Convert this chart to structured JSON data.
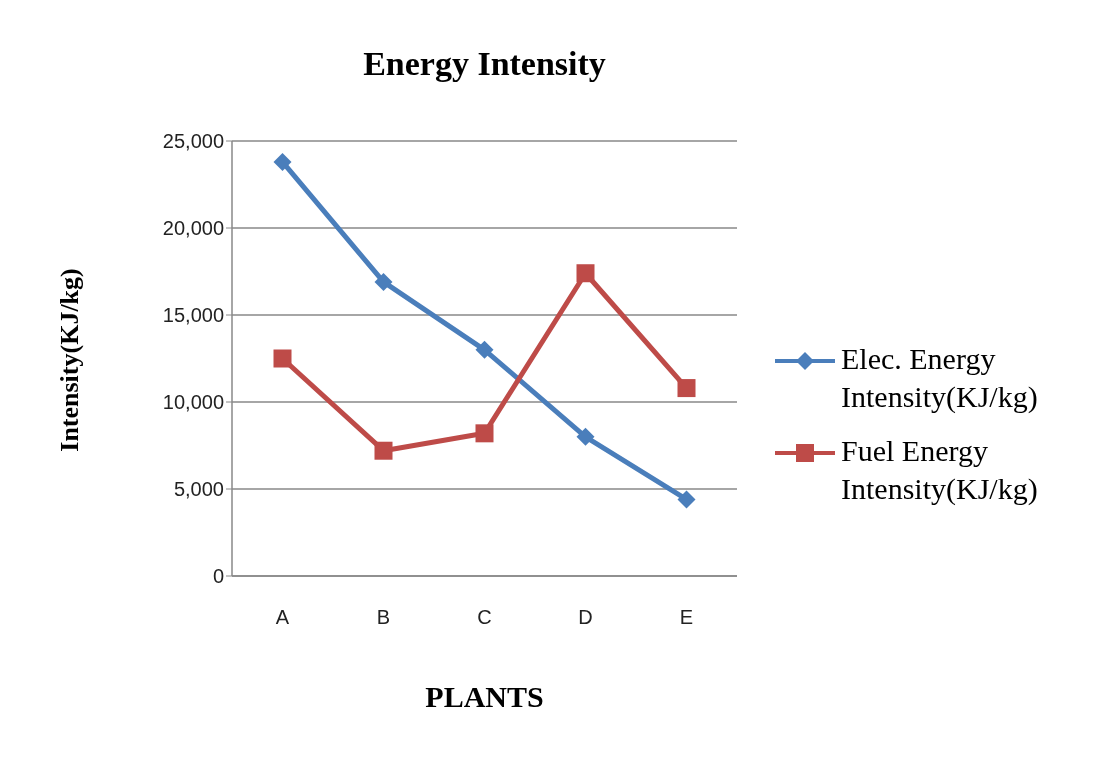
{
  "chart_data": {
    "type": "line",
    "title": "Energy Intensity",
    "xlabel": "PLANTS",
    "ylabel": "Intensity(KJ/kg)",
    "categories": [
      "A",
      "B",
      "C",
      "D",
      "E"
    ],
    "series": [
      {
        "name": "Elec. Energy Intensity(KJ/kg)",
        "color": "#4a7ebb",
        "marker": "diamond",
        "values": [
          23800,
          16900,
          13000,
          8000,
          4400
        ]
      },
      {
        "name": "Fuel Energy Intensity(KJ/kg)",
        "color": "#be4b48",
        "marker": "square",
        "values": [
          12500,
          7200,
          8200,
          17400,
          10800
        ]
      }
    ],
    "ylim": [
      0,
      25000
    ],
    "yticks": [
      0,
      {
        "value": 5000,
        "label": "5,000"
      },
      {
        "value": 10000,
        "label": "10,000"
      },
      {
        "value": 15000,
        "label": "15,000"
      },
      {
        "value": 20000,
        "label": "20,000"
      },
      {
        "value": 25000,
        "label": "25,000"
      }
    ],
    "grid": "y",
    "legend": "right"
  }
}
